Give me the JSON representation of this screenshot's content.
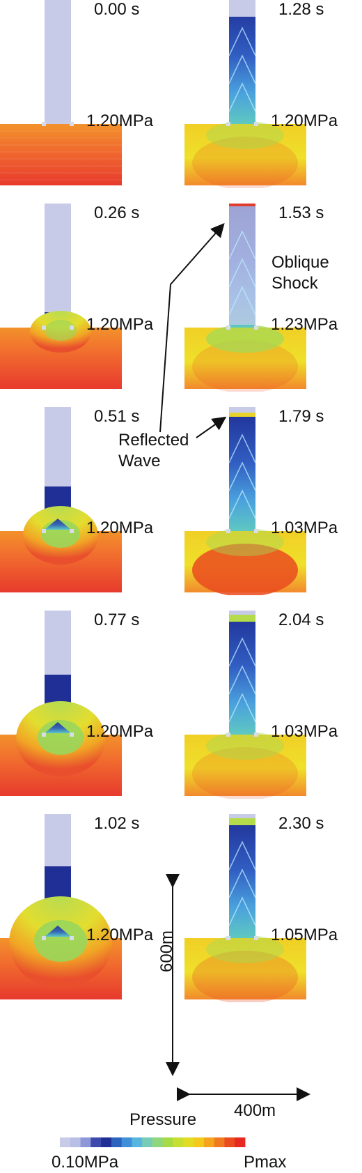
{
  "frames": [
    {
      "time": "0.00 s",
      "pressure": "1.20MPa",
      "snapshot_name": "frame-0-00s"
    },
    {
      "time": "0.26 s",
      "pressure": "1.20MPa",
      "snapshot_name": "frame-0-26s"
    },
    {
      "time": "0.51 s",
      "pressure": "1.20MPa",
      "snapshot_name": "frame-0-51s"
    },
    {
      "time": "0.77 s",
      "pressure": "1.20MPa",
      "snapshot_name": "frame-0-77s"
    },
    {
      "time": "1.02 s",
      "pressure": "1.20MPa",
      "snapshot_name": "frame-1-02s"
    },
    {
      "time": "1.28 s",
      "pressure": "1.20MPa",
      "snapshot_name": "frame-1-28s"
    },
    {
      "time": "1.53 s",
      "pressure": "1.23MPa",
      "snapshot_name": "frame-1-53s"
    },
    {
      "time": "1.79 s",
      "pressure": "1.03MPa",
      "snapshot_name": "frame-1-79s"
    },
    {
      "time": "2.04 s",
      "pressure": "1.03MPa",
      "snapshot_name": "frame-2-04s"
    },
    {
      "time": "2.30 s",
      "pressure": "1.05MPa",
      "snapshot_name": "frame-2-30s"
    }
  ],
  "annotations": {
    "oblique_shock": "Oblique\nShock",
    "reflected_wave": "Reflected\nWave"
  },
  "dimensions": {
    "height": "600m",
    "width": "400m"
  },
  "legend": {
    "title": "Pressure",
    "min": "0.10MPa",
    "max": "Pmax",
    "colors": [
      "#c8cbe8",
      "#b8bfe6",
      "#8d96d8",
      "#3d4aac",
      "#1f2f96",
      "#2c63bf",
      "#3f90d8",
      "#57b6df",
      "#78ccb6",
      "#8fd67d",
      "#a7db45",
      "#c6df30",
      "#e2dd24",
      "#f2c91c",
      "#f4a51d",
      "#f07a20",
      "#ea4b1f",
      "#e72921"
    ]
  },
  "colors": {
    "light_blue": "#c8cbe8",
    "deep_blue": "#1f2f96",
    "cyan": "#45a6db",
    "green": "#9ad857",
    "yellow": "#e2dc29",
    "orange": "#f28b22",
    "red": "#e7372c",
    "text": "#111111"
  }
}
